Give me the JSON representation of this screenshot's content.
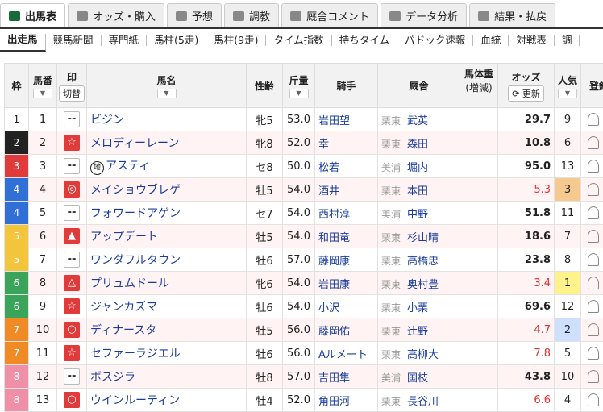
{
  "tabs": [
    "出馬表",
    "オッズ・購入",
    "予想",
    "調教",
    "厩舎コメント",
    "データ分析",
    "結果・払戻"
  ],
  "subnav": [
    "出走馬",
    "競馬新聞",
    "専門紙",
    "馬柱(5走)",
    "馬柱(9走)",
    "タイム指数",
    "持ちタイム",
    "パドック速報",
    "血統",
    "対戦表",
    "調"
  ],
  "table": {
    "header": {
      "waku": "枠",
      "umaban": "馬番",
      "mark": "印",
      "mark_toggle": "切替",
      "name": "馬名",
      "sexage": "性齢",
      "weight": "斤量",
      "jockey": "騎手",
      "stable": "厩舎",
      "body": "馬体重",
      "body_sub": "(増減)",
      "odds": "オッズ",
      "odds_refresh": "更新",
      "pop": "人気",
      "reg": "登録"
    },
    "rows": [
      {
        "waku": "1",
        "umaban": "1",
        "mark": "--",
        "name": "ビジン",
        "sexage": "牝5",
        "weight": "53.0",
        "jockey": "岩田望",
        "region": "栗東",
        "trainer": "武英",
        "odds": "29.7",
        "pop": "9"
      },
      {
        "waku": "2",
        "umaban": "2",
        "mark": "☆",
        "name": "メロディーレーン",
        "sexage": "牝8",
        "weight": "52.0",
        "jockey": "幸",
        "region": "栗東",
        "trainer": "森田",
        "odds": "10.8",
        "pop": "6"
      },
      {
        "waku": "3",
        "umaban": "3",
        "mark": "--",
        "prefix": "地",
        "name": "アスティ",
        "sexage": "セ8",
        "weight": "50.0",
        "jockey": "松若",
        "region": "美浦",
        "trainer": "堀内",
        "odds": "95.0",
        "pop": "13"
      },
      {
        "waku": "4",
        "umaban": "4",
        "mark": "◎",
        "name": "メイショウブレゲ",
        "sexage": "牡5",
        "weight": "54.0",
        "jockey": "酒井",
        "region": "栗東",
        "trainer": "本田",
        "odds": "5.3",
        "pop": "3"
      },
      {
        "waku": "4",
        "umaban": "5",
        "mark": "--",
        "name": "フォワードアゲン",
        "sexage": "セ7",
        "weight": "54.0",
        "jockey": "西村淳",
        "region": "美浦",
        "trainer": "中野",
        "odds": "51.8",
        "pop": "11"
      },
      {
        "waku": "5",
        "umaban": "6",
        "mark": "▲",
        "name": "アップデート",
        "sexage": "牡5",
        "weight": "54.0",
        "jockey": "和田竜",
        "region": "栗東",
        "trainer": "杉山晴",
        "odds": "18.6",
        "pop": "7"
      },
      {
        "waku": "5",
        "umaban": "7",
        "mark": "--",
        "name": "ワンダフルタウン",
        "sexage": "牡6",
        "weight": "57.0",
        "jockey": "藤岡康",
        "region": "栗東",
        "trainer": "高橋忠",
        "odds": "23.8",
        "pop": "8"
      },
      {
        "waku": "6",
        "umaban": "8",
        "mark": "△",
        "name": "プリュムドール",
        "sexage": "牝6",
        "weight": "54.0",
        "jockey": "岩田康",
        "region": "栗東",
        "trainer": "奥村豊",
        "odds": "3.4",
        "pop": "1"
      },
      {
        "waku": "6",
        "umaban": "9",
        "mark": "☆",
        "name": "ジャンカズマ",
        "sexage": "牡6",
        "weight": "54.0",
        "jockey": "小沢",
        "region": "栗東",
        "trainer": "小栗",
        "odds": "69.6",
        "pop": "12"
      },
      {
        "waku": "7",
        "umaban": "10",
        "mark": "○",
        "name": "ディナースタ",
        "sexage": "牡5",
        "weight": "56.0",
        "jockey": "藤岡佑",
        "region": "栗東",
        "trainer": "辻野",
        "odds": "4.7",
        "pop": "2"
      },
      {
        "waku": "7",
        "umaban": "11",
        "mark": "☆",
        "name": "セファーラジエル",
        "sexage": "牡6",
        "weight": "56.0",
        "jockey": "Aルメート",
        "region": "栗東",
        "trainer": "高柳大",
        "odds": "7.8",
        "pop": "5"
      },
      {
        "waku": "8",
        "umaban": "12",
        "mark": "--",
        "name": "ボスジラ",
        "sexage": "牡8",
        "weight": "57.0",
        "jockey": "吉田隼",
        "region": "美浦",
        "trainer": "国枝",
        "odds": "43.8",
        "pop": "10"
      },
      {
        "waku": "8",
        "umaban": "13",
        "mark": "○",
        "name": "ウインルーティン",
        "sexage": "牡4",
        "weight": "52.0",
        "jockey": "角田河",
        "region": "栗東",
        "trainer": "長谷川",
        "odds": "6.6",
        "pop": "4"
      }
    ]
  }
}
